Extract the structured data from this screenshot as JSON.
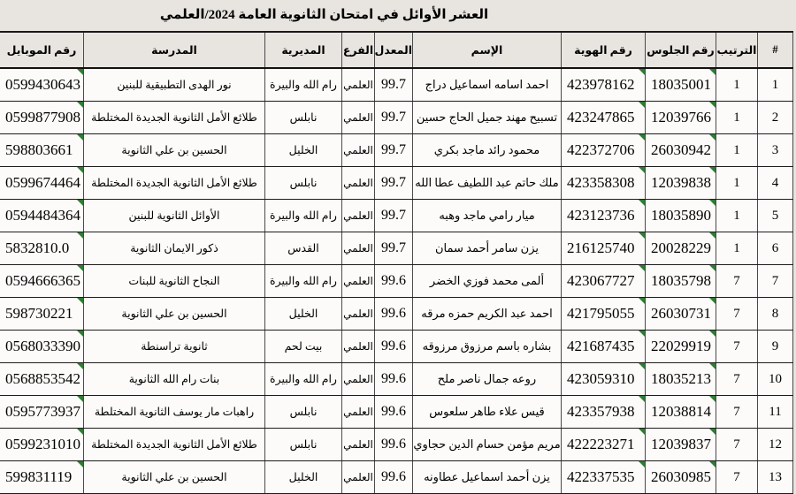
{
  "title": "العشر الأوائل في امتحان الثانوية العامة 2024/العلمي",
  "colors": {
    "page_background": "#e8e5e0",
    "cell_background": "#fcfbf9",
    "flag_green": "#2e7d32"
  },
  "table": {
    "columns": [
      {
        "key": "num",
        "label": "#"
      },
      {
        "key": "rank",
        "label": "الترتيب"
      },
      {
        "key": "seat",
        "label": "رقم الجلوس"
      },
      {
        "key": "id",
        "label": "رقم الهوية"
      },
      {
        "key": "name",
        "label": "الإسم"
      },
      {
        "key": "avg",
        "label": "المعدل"
      },
      {
        "key": "branch",
        "label": "الفرع"
      },
      {
        "key": "dir",
        "label": "المديرية"
      },
      {
        "key": "school",
        "label": "المدرسة"
      },
      {
        "key": "mobile",
        "label": "رقم الموبايل"
      }
    ],
    "flagged_columns": [
      "seat",
      "id",
      "mobile"
    ],
    "flag_icon": "number-stored-as-text-flag",
    "rows": [
      {
        "num": "1",
        "rank": "1",
        "seat": "18035001",
        "id": "423978162",
        "name": "احمد اسامه اسماعيل دراج",
        "avg": "99.7",
        "branch": "العلمي",
        "dir": "رام الله والبيرة",
        "school": "نور الهدى التطبيقية للبنين",
        "mobile": "0599430643"
      },
      {
        "num": "2",
        "rank": "1",
        "seat": "12039766",
        "id": "423247865",
        "name": "تسبيح مهند جميل الحاج حسين",
        "avg": "99.7",
        "branch": "العلمي",
        "dir": "نابلس",
        "school": "طلائع الأمل الثانوية الجديدة المختلطة",
        "mobile": "0599877908"
      },
      {
        "num": "3",
        "rank": "1",
        "seat": "26030942",
        "id": "422372706",
        "name": "محمود رائد ماجد بكري",
        "avg": "99.7",
        "branch": "العلمي",
        "dir": "الخليل",
        "school": "الحسين بن علي الثانوية",
        "mobile": "598803661"
      },
      {
        "num": "4",
        "rank": "1",
        "seat": "12039838",
        "id": "423358308",
        "name": "ملك حاتم عبد اللطيف عطا الله",
        "avg": "99.7",
        "branch": "العلمي",
        "dir": "نابلس",
        "school": "طلائع الأمل الثانوية الجديدة المختلطة",
        "mobile": "0599674464"
      },
      {
        "num": "5",
        "rank": "1",
        "seat": "18035890",
        "id": "423123736",
        "name": "ميار رامي ماجد وهبه",
        "avg": "99.7",
        "branch": "العلمي",
        "dir": "رام الله والبيرة",
        "school": "الأوائل الثانوية للبنين",
        "mobile": "0594484364"
      },
      {
        "num": "6",
        "rank": "1",
        "seat": "20028229",
        "id": "216125740",
        "name": "يزن سامر أحمد سمان",
        "avg": "99.7",
        "branch": "العلمي",
        "dir": "القدس",
        "school": "ذكور الايمان الثانوية",
        "mobile": "5832810.0"
      },
      {
        "num": "7",
        "rank": "7",
        "seat": "18035798",
        "id": "423067727",
        "name": "ألمى محمد فوزي الخضر",
        "avg": "99.6",
        "branch": "العلمي",
        "dir": "رام الله والبيرة",
        "school": "النجاح الثانوية للبنات",
        "mobile": "0594666365"
      },
      {
        "num": "8",
        "rank": "7",
        "seat": "26030731",
        "id": "421795055",
        "name": "احمد عبد الكريم حمزه مرقه",
        "avg": "99.6",
        "branch": "العلمي",
        "dir": "الخليل",
        "school": "الحسين بن علي الثانوية",
        "mobile": "598730221"
      },
      {
        "num": "9",
        "rank": "7",
        "seat": "22029919",
        "id": "421687435",
        "name": "بشاره باسم مرزوق مرزوقه",
        "avg": "99.6",
        "branch": "العلمي",
        "dir": "بيت لحم",
        "school": "ثانوية تراسنطة",
        "mobile": "0568033390"
      },
      {
        "num": "10",
        "rank": "7",
        "seat": "18035213",
        "id": "423059310",
        "name": "روعه جمال ناصر ملح",
        "avg": "99.6",
        "branch": "العلمي",
        "dir": "رام الله والبيرة",
        "school": "بنات رام الله الثانوية",
        "mobile": "0568853542"
      },
      {
        "num": "11",
        "rank": "7",
        "seat": "12038814",
        "id": "423357938",
        "name": "قيس علاء طاهر سلعوس",
        "avg": "99.6",
        "branch": "العلمي",
        "dir": "نابلس",
        "school": "راهبات مار يوسف الثانوية المختلطة",
        "mobile": "0595773937"
      },
      {
        "num": "12",
        "rank": "7",
        "seat": "12039837",
        "id": "422223271",
        "name": "مريم مؤمن حسام الدين حجاوي",
        "avg": "99.6",
        "branch": "العلمي",
        "dir": "نابلس",
        "school": "طلائع الأمل الثانوية الجديدة المختلطة",
        "mobile": "0599231010"
      },
      {
        "num": "13",
        "rank": "7",
        "seat": "26030985",
        "id": "422337535",
        "name": "يزن أحمد اسماعيل عطاونه",
        "avg": "99.6",
        "branch": "العلمي",
        "dir": "الخليل",
        "school": "الحسين بن علي الثانوية",
        "mobile": "599831119"
      }
    ]
  }
}
